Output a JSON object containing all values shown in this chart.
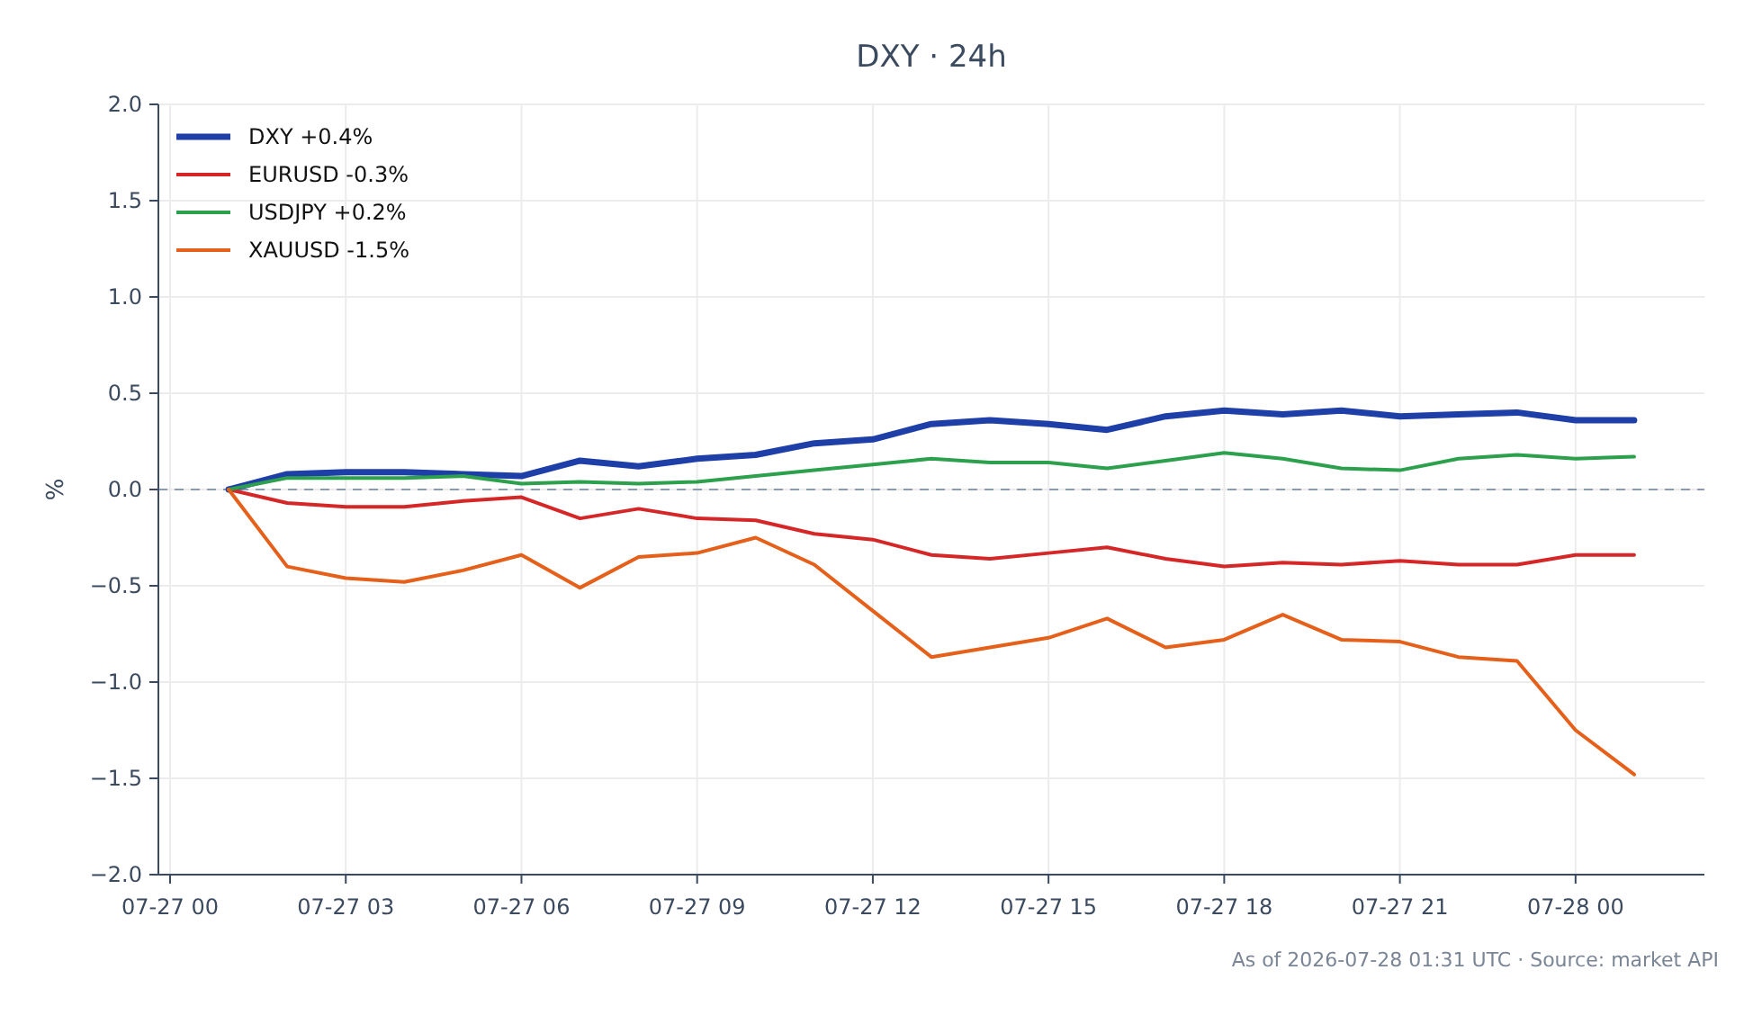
{
  "chart_data": {
    "type": "line",
    "title": "DXY · 24h",
    "ylabel": "%",
    "x": [
      "2026-07-27T01:00",
      "2026-07-27T02:00",
      "2026-07-27T03:00",
      "2026-07-27T04:00",
      "2026-07-27T05:00",
      "2026-07-27T06:00",
      "2026-07-27T07:00",
      "2026-07-27T08:00",
      "2026-07-27T09:00",
      "2026-07-27T10:00",
      "2026-07-27T11:00",
      "2026-07-27T12:00",
      "2026-07-27T13:00",
      "2026-07-27T14:00",
      "2026-07-27T15:00",
      "2026-07-27T16:00",
      "2026-07-27T17:00",
      "2026-07-27T18:00",
      "2026-07-27T19:00",
      "2026-07-27T20:00",
      "2026-07-27T21:00",
      "2026-07-27T22:00",
      "2026-07-27T23:00",
      "2026-07-28T00:00",
      "2026-07-28T01:00"
    ],
    "xlim": [
      "2026-07-26T23:48",
      "2026-07-28T02:12"
    ],
    "xticks": [
      {
        "value": "2026-07-27T00:00",
        "label": "07-27 00"
      },
      {
        "value": "2026-07-27T03:00",
        "label": "07-27 03"
      },
      {
        "value": "2026-07-27T06:00",
        "label": "07-27 06"
      },
      {
        "value": "2026-07-27T09:00",
        "label": "07-27 09"
      },
      {
        "value": "2026-07-27T12:00",
        "label": "07-27 12"
      },
      {
        "value": "2026-07-27T15:00",
        "label": "07-27 15"
      },
      {
        "value": "2026-07-27T18:00",
        "label": "07-27 18"
      },
      {
        "value": "2026-07-27T21:00",
        "label": "07-27 21"
      },
      {
        "value": "2026-07-28T00:00",
        "label": "07-28 00"
      }
    ],
    "ylim": [
      -2,
      2
    ],
    "yticks": [
      {
        "value": -2,
        "label": "−2.0"
      },
      {
        "value": -1.5,
        "label": "−1.5"
      },
      {
        "value": -1,
        "label": "−1.0"
      },
      {
        "value": -0.5,
        "label": "−0.5"
      },
      {
        "value": 0,
        "label": "0.0"
      },
      {
        "value": 0.5,
        "label": "0.5"
      },
      {
        "value": 1,
        "label": "1.0"
      },
      {
        "value": 1.5,
        "label": "1.5"
      },
      {
        "value": 2,
        "label": "2.0"
      }
    ],
    "series": [
      {
        "name": "DXY +0.4%",
        "color": "#1f3fa8",
        "values": [
          0,
          0.08,
          0.09,
          0.09,
          0.08,
          0.07,
          0.15,
          0.12,
          0.16,
          0.18,
          0.24,
          0.26,
          0.34,
          0.36,
          0.34,
          0.31,
          0.38,
          0.41,
          0.39,
          0.41,
          0.38,
          0.39,
          0.4,
          0.36,
          0.36
        ]
      },
      {
        "name": "EURUSD -0.3%",
        "color": "#d62728",
        "values": [
          0,
          -0.07,
          -0.09,
          -0.09,
          -0.06,
          -0.04,
          -0.15,
          -0.1,
          -0.15,
          -0.16,
          -0.23,
          -0.26,
          -0.34,
          -0.36,
          -0.33,
          -0.3,
          -0.36,
          -0.4,
          -0.38,
          -0.39,
          -0.37,
          -0.39,
          -0.39,
          -0.34,
          -0.34
        ]
      },
      {
        "name": "USDJPY +0.2%",
        "color": "#2ca04c",
        "values": [
          0,
          0.06,
          0.06,
          0.06,
          0.07,
          0.03,
          0.04,
          0.03,
          0.04,
          0.07,
          0.1,
          0.13,
          0.16,
          0.14,
          0.14,
          0.11,
          0.15,
          0.19,
          0.16,
          0.11,
          0.1,
          0.16,
          0.18,
          0.16,
          0.17
        ]
      },
      {
        "name": "XAUUSD -1.5%",
        "color": "#e5601a",
        "values": [
          0,
          -0.4,
          -0.46,
          -0.48,
          -0.42,
          -0.34,
          -0.51,
          -0.35,
          -0.33,
          -0.25,
          -0.39,
          -0.63,
          -0.87,
          -0.82,
          -0.77,
          -0.67,
          -0.82,
          -0.78,
          -0.65,
          -0.78,
          -0.79,
          -0.87,
          -0.89,
          -1.25,
          -1.48
        ]
      }
    ],
    "ref_lines": [
      {
        "axis": "y",
        "value": 0,
        "color": "#8a9bb5",
        "line_style": "dashed"
      }
    ],
    "grid": true,
    "legend": "top left",
    "annotations": [
      "As of 2026-07-28 01:31 UTC · Source: market API"
    ]
  }
}
